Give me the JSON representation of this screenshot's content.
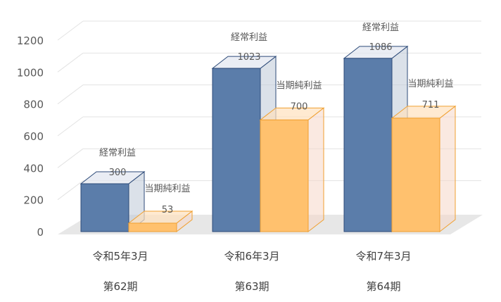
{
  "chart_data": {
    "type": "bar",
    "style": "3d-clustered-column",
    "categories": [
      {
        "period": "令和5年3月",
        "term": "第62期"
      },
      {
        "period": "令和6年3月",
        "term": "第63期"
      },
      {
        "period": "令和7年3月",
        "term": "第64期"
      }
    ],
    "series": [
      {
        "name": "経常利益",
        "values": [
          300,
          1023,
          1086
        ],
        "color": "#5b7daa"
      },
      {
        "name": "当期純利益",
        "values": [
          53,
          700,
          711
        ],
        "color": "#ffc16e"
      }
    ],
    "ylim": [
      0,
      1200
    ],
    "yticks": [
      0,
      200,
      400,
      600,
      800,
      1000,
      1200
    ],
    "grid": true,
    "legend": "none",
    "title": "",
    "xlabel": "",
    "ylabel": ""
  }
}
